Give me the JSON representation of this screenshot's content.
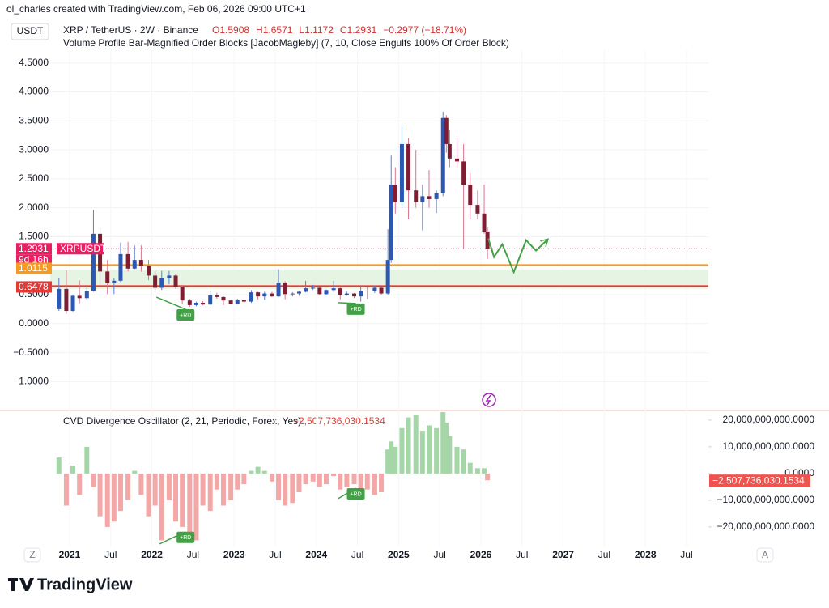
{
  "header": {
    "attribution": "ol_charles created with TradingView.com, Feb 06, 2026 09:00 UTC+1"
  },
  "footer": {
    "logo": "TradingView",
    "left_button": "Z",
    "right_button": "A"
  },
  "chart_data": [
    {
      "type": "candlestick",
      "title": "XRP / TetherUS · 2W · Binance",
      "ohlc_labels": [
        "O1.5908",
        "H1.6571",
        "L1.1172",
        "C1.2931",
        "−0.2977 (−18.71%)"
      ],
      "indicator": "Volume Profile Bar-Magnified Order Blocks [JacobMagleby] (7, 10, Close Engulfs 100% Of Order Block)",
      "currency": "USDT",
      "x": [
        2020.87,
        2020.96,
        2021.04,
        2021.12,
        2021.21,
        2021.29,
        2021.37,
        2021.46,
        2021.54,
        2021.62,
        2021.71,
        2021.79,
        2021.87,
        2021.96,
        2022.04,
        2022.12,
        2022.21,
        2022.29,
        2022.37,
        2022.46,
        2022.54,
        2022.62,
        2022.71,
        2022.79,
        2022.87,
        2022.96,
        2023.04,
        2023.12,
        2023.21,
        2023.29,
        2023.37,
        2023.46,
        2023.54,
        2023.62,
        2023.71,
        2023.79,
        2023.87,
        2023.96,
        2024.04,
        2024.12,
        2024.21,
        2024.29,
        2024.37,
        2024.46,
        2024.54,
        2024.62,
        2024.71,
        2024.79,
        2024.87,
        2024.91,
        2024.96,
        2025.04,
        2025.12,
        2025.21,
        2025.29,
        2025.37,
        2025.46,
        2025.54,
        2025.58,
        2025.62,
        2025.71,
        2025.79,
        2025.87,
        2025.96,
        2026.04,
        2026.08
      ],
      "open": [
        0.25,
        0.6,
        0.22,
        0.48,
        0.44,
        0.57,
        1.55,
        0.9,
        0.7,
        0.74,
        1.2,
        0.95,
        1.1,
        1.0,
        0.83,
        0.62,
        0.78,
        0.83,
        0.64,
        0.4,
        0.32,
        0.36,
        0.33,
        0.49,
        0.46,
        0.4,
        0.34,
        0.41,
        0.38,
        0.54,
        0.47,
        0.52,
        0.47,
        0.71,
        0.51,
        0.52,
        0.55,
        0.61,
        0.62,
        0.51,
        0.58,
        0.61,
        0.5,
        0.52,
        0.47,
        0.57,
        0.56,
        0.62,
        0.52,
        1.1,
        2.4,
        2.1,
        3.1,
        2.3,
        2.1,
        2.2,
        2.15,
        2.25,
        3.55,
        3.1,
        2.85,
        2.8,
        2.4,
        2.05,
        1.9,
        1.5908
      ],
      "high": [
        0.78,
        0.92,
        0.5,
        0.75,
        0.65,
        1.96,
        1.67,
        1.1,
        0.78,
        1.4,
        1.41,
        1.35,
        1.35,
        1.1,
        0.91,
        0.91,
        0.91,
        0.85,
        0.67,
        0.43,
        0.38,
        0.39,
        0.56,
        0.53,
        0.47,
        0.41,
        0.43,
        0.42,
        0.58,
        0.55,
        0.55,
        0.55,
        0.94,
        0.73,
        0.54,
        0.56,
        0.74,
        0.67,
        0.63,
        0.59,
        0.74,
        0.63,
        0.55,
        0.53,
        0.64,
        0.64,
        0.66,
        0.64,
        1.63,
        2.9,
        2.7,
        3.4,
        3.2,
        3.0,
        2.4,
        2.65,
        2.3,
        3.66,
        3.6,
        3.35,
        3.2,
        3.1,
        2.6,
        2.3,
        2.4,
        1.6571
      ],
      "low": [
        0.22,
        0.17,
        0.21,
        0.35,
        0.42,
        0.55,
        0.65,
        0.51,
        0.51,
        0.72,
        0.9,
        0.94,
        0.9,
        0.75,
        0.55,
        0.58,
        0.68,
        0.6,
        0.33,
        0.29,
        0.3,
        0.32,
        0.32,
        0.43,
        0.32,
        0.33,
        0.33,
        0.36,
        0.36,
        0.42,
        0.41,
        0.46,
        0.46,
        0.42,
        0.47,
        0.48,
        0.54,
        0.58,
        0.49,
        0.5,
        0.55,
        0.42,
        0.48,
        0.44,
        0.38,
        0.43,
        0.53,
        0.5,
        0.5,
        1.05,
        1.9,
        2.0,
        1.8,
        2.0,
        1.61,
        2.0,
        1.91,
        2.2,
        2.95,
        2.7,
        2.7,
        1.3,
        1.8,
        1.8,
        1.55,
        1.1172
      ],
      "close": [
        0.6,
        0.22,
        0.48,
        0.44,
        0.57,
        1.55,
        0.9,
        0.7,
        0.74,
        1.2,
        0.95,
        1.1,
        1.0,
        0.83,
        0.62,
        0.78,
        0.83,
        0.64,
        0.4,
        0.32,
        0.36,
        0.33,
        0.49,
        0.46,
        0.4,
        0.34,
        0.41,
        0.38,
        0.54,
        0.47,
        0.52,
        0.47,
        0.71,
        0.51,
        0.52,
        0.55,
        0.61,
        0.62,
        0.51,
        0.58,
        0.61,
        0.5,
        0.52,
        0.47,
        0.57,
        0.56,
        0.62,
        0.52,
        1.1,
        2.4,
        2.1,
        3.1,
        2.3,
        2.1,
        2.2,
        2.15,
        2.25,
        3.55,
        3.1,
        2.85,
        2.8,
        2.4,
        2.05,
        1.9,
        1.59,
        1.2931
      ],
      "up_color": "#2b57b5",
      "down_color": "#7f1d33",
      "xlim": [
        2020.764,
        2028.766
      ],
      "xticks": [
        {
          "value": 2021,
          "label": "2021"
        },
        {
          "value": 2021.5,
          "label": "Jul"
        },
        {
          "value": 2022,
          "label": "2022"
        },
        {
          "value": 2022.5,
          "label": "Jul"
        },
        {
          "value": 2023,
          "label": "2023"
        },
        {
          "value": 2023.5,
          "label": "Jul"
        },
        {
          "value": 2024,
          "label": "2024"
        },
        {
          "value": 2024.5,
          "label": "Jul"
        },
        {
          "value": 2025,
          "label": "2025"
        },
        {
          "value": 2025.5,
          "label": "Jul"
        },
        {
          "value": 2026,
          "label": "2026"
        },
        {
          "value": 2026.5,
          "label": "Jul"
        },
        {
          "value": 2027,
          "label": "2027"
        },
        {
          "value": 2027.5,
          "label": "Jul"
        },
        {
          "value": 2028,
          "label": "2028"
        },
        {
          "value": 2028.5,
          "label": "Jul"
        }
      ],
      "ylim": [
        -1.47,
        4.72
      ],
      "yticks": [
        {
          "value": -1,
          "label": "−1.0000"
        },
        {
          "value": -0.5,
          "label": "−0.5000"
        },
        {
          "value": 0,
          "label": "0.0000"
        },
        {
          "value": 0.5,
          "label": "0.5000"
        },
        {
          "value": 1,
          "label": "1.0000"
        },
        {
          "value": 1.5,
          "label": "1.5000"
        },
        {
          "value": 2,
          "label": "2.0000"
        },
        {
          "value": 2.5,
          "label": "2.5000"
        },
        {
          "value": 3,
          "label": "3.0000"
        },
        {
          "value": 3.5,
          "label": "3.5000"
        },
        {
          "value": 4,
          "label": "4.0000"
        },
        {
          "value": 4.5,
          "label": "4.5000"
        }
      ],
      "grid": true,
      "last_price": {
        "value": 1.2931,
        "label": "1.2931",
        "color": "#e91e63"
      },
      "symbol": "XRPUSDT",
      "countdown": "9d 16h",
      "levels": [
        {
          "value": 1.0115,
          "label": "1.0115",
          "color": "#f59a23"
        },
        {
          "value": 0.6478,
          "label": "0.6478",
          "color": "#e53935"
        }
      ],
      "zone": [
        0.6,
        0.936
      ],
      "zone_color": "#e6f4e4",
      "projection": {
        "color": "#43a047",
        "x": [
          2026.09,
          2026.16,
          2026.26,
          2026.4,
          2026.55,
          2026.67,
          2026.81
        ],
        "y": [
          1.47,
          1.15,
          1.37,
          0.89,
          1.44,
          1.26,
          1.45
        ]
      },
      "annotations": [
        {
          "text": "+RD",
          "x": 2022.41,
          "y": 0.15
        },
        {
          "text": "+RD",
          "x": 2024.48,
          "y": 0.25
        }
      ]
    },
    {
      "type": "bar",
      "title": "CVD Divergence Oscillator (2, 21, Periodic, Forex, Yes)",
      "last_value": {
        "value": -2507736030.1534,
        "label": "−2,507,736,030.1534"
      },
      "x": [
        2020.87,
        2020.96,
        2021.04,
        2021.12,
        2021.21,
        2021.29,
        2021.37,
        2021.46,
        2021.54,
        2021.62,
        2021.71,
        2021.79,
        2021.87,
        2021.96,
        2022.04,
        2022.12,
        2022.21,
        2022.29,
        2022.37,
        2022.46,
        2022.54,
        2022.62,
        2022.71,
        2022.79,
        2022.87,
        2022.96,
        2023.04,
        2023.12,
        2023.21,
        2023.29,
        2023.37,
        2023.46,
        2023.54,
        2023.62,
        2023.71,
        2023.79,
        2023.87,
        2023.96,
        2024.04,
        2024.12,
        2024.21,
        2024.29,
        2024.37,
        2024.46,
        2024.54,
        2024.62,
        2024.71,
        2024.79,
        2024.87,
        2024.91,
        2024.96,
        2025.04,
        2025.12,
        2025.21,
        2025.29,
        2025.37,
        2025.46,
        2025.54,
        2025.58,
        2025.62,
        2025.71,
        2025.79,
        2025.87,
        2025.96,
        2026.04,
        2026.08
      ],
      "values": [
        6000000000.0,
        -12000000000.0,
        3000000000.0,
        -8000000000.0,
        10000000000.0,
        -5000000000.0,
        -16000000000.0,
        -20000000000.0,
        -18000000000.0,
        -14000000000.0,
        -10000000000.0,
        1000000000.0,
        -8000000000.0,
        -16000000000.0,
        -12000000000.0,
        -25000000000.0,
        -10000000000.0,
        -18000000000.0,
        -20000000000.0,
        -22000000000.0,
        -25000000000.0,
        -12000000000.0,
        -14000000000.0,
        -6000000000.0,
        -12000000000.0,
        -10000000000.0,
        -6000000000.0,
        -4000000000.0,
        1000000000.0,
        2500000000.0,
        1000000000.0,
        -3000000000.0,
        -10000000000.0,
        -12000000000.0,
        -11000000000.0,
        -7000000000.0,
        -4000000000.0,
        -3000000000.0,
        -5000000000.0,
        -4000000000.0,
        -1000000000.0,
        -6000000000.0,
        -5000000000.0,
        -4000000000.0,
        -7000000000.0,
        -6000000000.0,
        -8000000000.0,
        -7000000000.0,
        9000000000.0,
        12000000000.0,
        10000000000.0,
        17000000000.0,
        21000000000.0,
        22000000000.0,
        16000000000.0,
        18000000000.0,
        17000000000.0,
        23000000000.0,
        19000000000.0,
        14000000000.0,
        10000000000.0,
        9000000000.0,
        4000000000.0,
        2000000000.0,
        2000000000.0,
        -2507736030.1534
      ],
      "up_color": "#a5d6a7",
      "down_color": "#f4a7a7",
      "ylim": [
        -27300000000.0,
        23600000000.0
      ],
      "yticks": [
        {
          "value": -20000000000.0,
          "label": "−20,000,000,000.0000"
        },
        {
          "value": -10000000000.0,
          "label": "−10,000,000,000.0000"
        },
        {
          "value": 0,
          "label": "0.0000"
        },
        {
          "value": 10000000000.0,
          "label": "10,000,000,000.0000"
        },
        {
          "value": 20000000000.0,
          "label": "20,000,000,000.0000"
        }
      ],
      "annotations": [
        {
          "text": "+RD",
          "x": 2022.41,
          "y": -23900000000.0
        },
        {
          "text": "+RD",
          "x": 2024.48,
          "y": -7600000000.0
        }
      ]
    }
  ]
}
